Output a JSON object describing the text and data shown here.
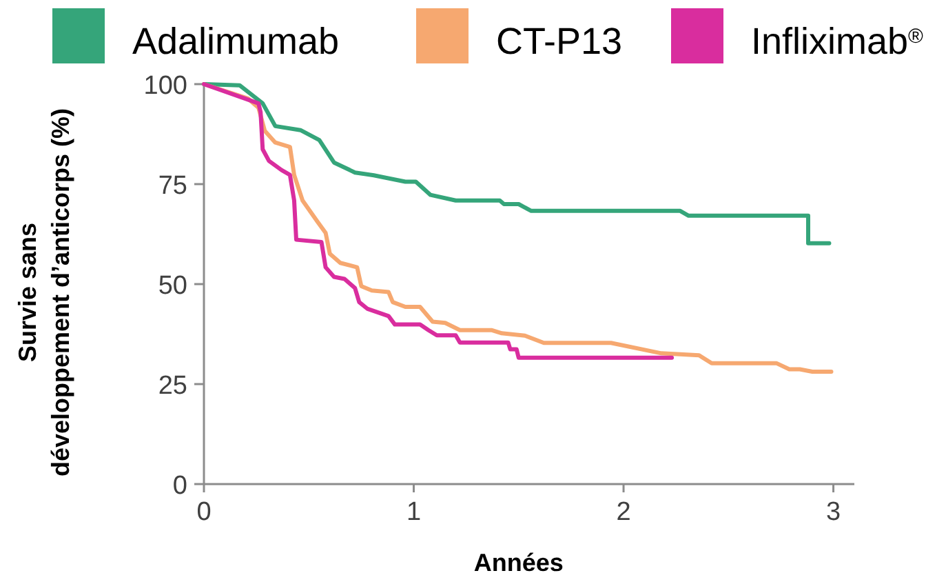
{
  "chart_data": {
    "type": "line",
    "xlabel": "Années",
    "ylabel": "Survie sans développement d’anticorps (%)",
    "xlim": [
      0,
      3.1
    ],
    "ylim": [
      0,
      100
    ],
    "xticks": [
      0,
      1,
      2,
      3
    ],
    "yticks": [
      0,
      25,
      50,
      75,
      100
    ],
    "legend": "top",
    "grid": false,
    "marker": "none",
    "line_style": "solid",
    "series": [
      {
        "name": "Adalimumab",
        "color": "#35a57a",
        "x": [
          0,
          0.17,
          0.28,
          0.34,
          0.46,
          0.55,
          0.62,
          0.72,
          0.81,
          0.96,
          1.01,
          1.08,
          1.2,
          1.41,
          1.43,
          1.5,
          1.56,
          2.27,
          2.31,
          2.88,
          2.88,
          2.98
        ],
        "values": [
          100,
          99.7,
          95.2,
          89.5,
          88.5,
          86,
          80.4,
          77.9,
          77.2,
          75.6,
          75.6,
          72.3,
          70.9,
          70.9,
          70,
          70,
          68.3,
          68.3,
          67.1,
          67.1,
          60.2,
          60.2
        ]
      },
      {
        "name": "CT-P13",
        "color": "#f6a870",
        "x": [
          0,
          0.21,
          0.26,
          0.29,
          0.34,
          0.41,
          0.43,
          0.47,
          0.54,
          0.58,
          0.6,
          0.65,
          0.73,
          0.75,
          0.8,
          0.88,
          0.9,
          0.96,
          1.03,
          1.09,
          1.15,
          1.22,
          1.37,
          1.42,
          1.53,
          1.62,
          1.94,
          2.18,
          2.36,
          2.42,
          2.73,
          2.79,
          2.84,
          2.9,
          2.99
        ],
        "values": [
          100,
          96.4,
          94.1,
          88.3,
          85.4,
          84.3,
          77.3,
          70.9,
          65.7,
          62.8,
          57.6,
          55.3,
          54.2,
          49.5,
          48.4,
          48,
          45.5,
          44.3,
          44.3,
          40.6,
          40.3,
          38.5,
          38.5,
          37.7,
          37.1,
          35.3,
          35.3,
          32.7,
          32.2,
          30.2,
          30.2,
          28.7,
          28.7,
          28.1,
          28.1
        ]
      },
      {
        "name": "Infliximab$^{®}$",
        "color": "#d92d9e",
        "x": [
          0,
          0.26,
          0.27,
          0.28,
          0.31,
          0.37,
          0.41,
          0.43,
          0.44,
          0.56,
          0.58,
          0.62,
          0.67,
          0.72,
          0.74,
          0.78,
          0.88,
          0.91,
          1.03,
          1.07,
          1.11,
          1.2,
          1.22,
          1.45,
          1.46,
          1.49,
          1.5,
          2.23
        ],
        "values": [
          100,
          95.2,
          93,
          83.7,
          80.8,
          78.5,
          77.3,
          70.9,
          61.1,
          60.5,
          54.2,
          51.8,
          51.3,
          49,
          45.5,
          43.8,
          42,
          39.9,
          39.9,
          38.5,
          37.2,
          37.2,
          35.4,
          35.4,
          33.7,
          33.7,
          31.6,
          31.6
        ]
      }
    ]
  }
}
